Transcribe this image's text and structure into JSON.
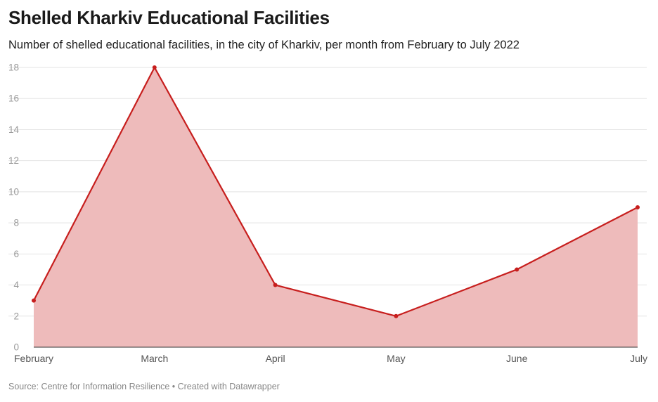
{
  "title": "Shelled Kharkiv Educational Facilities",
  "subtitle": "Number of shelled educational facilities, in the city of Kharkiv, per month from February to July 2022",
  "footer": "Source: Centre for Information Resilience • Created with Datawrapper",
  "colors": {
    "line": "#c71e1d",
    "area": "#eebbbb"
  },
  "chart_data": {
    "type": "area",
    "title": "Shelled Kharkiv Educational Facilities",
    "subtitle": "Number of shelled educational facilities, in the city of Kharkiv, per month from February to July 2022",
    "categories": [
      "February",
      "March",
      "April",
      "May",
      "June",
      "July"
    ],
    "values": [
      3,
      18,
      4,
      2,
      5,
      9
    ],
    "ylim": [
      0,
      18
    ],
    "yticks": [
      0,
      2,
      4,
      6,
      8,
      10,
      12,
      14,
      16,
      18
    ],
    "grid": true,
    "legend": "none"
  }
}
